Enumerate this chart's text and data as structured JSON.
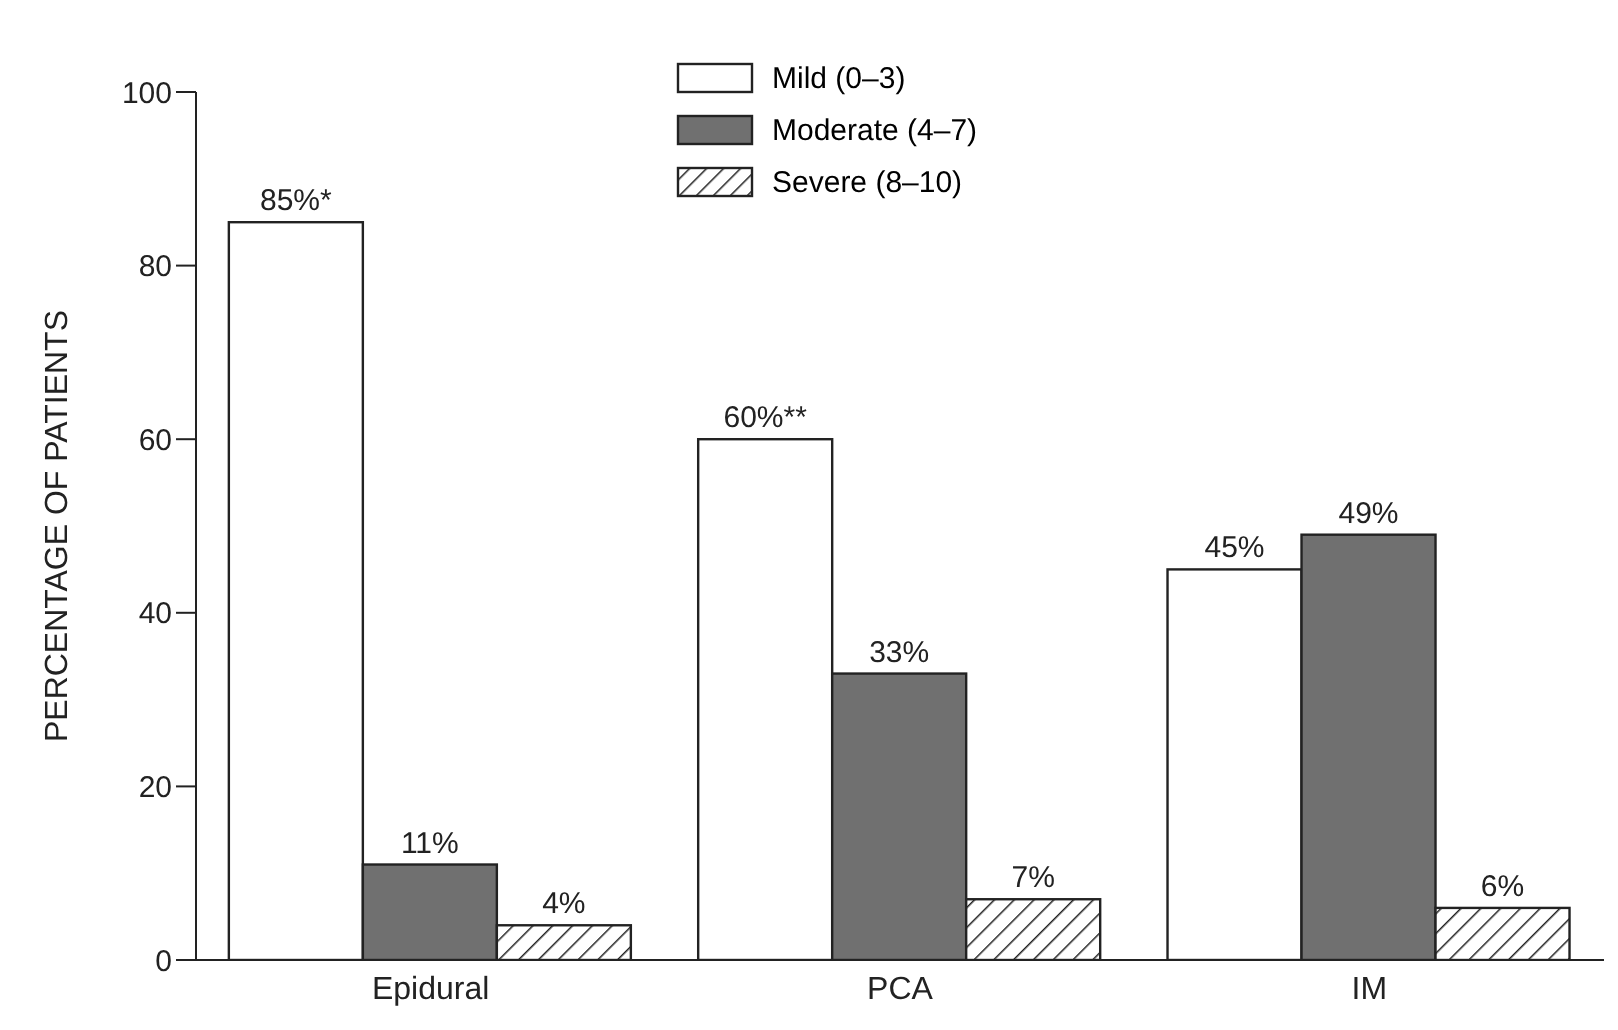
{
  "chart_data": {
    "type": "bar",
    "ylabel": "PERCENTAGE OF PATIENTS",
    "categories": [
      "Epidural",
      "PCA",
      "IM"
    ],
    "series": [
      {
        "name": "Mild (0–3)",
        "color": "#ffffff",
        "values": [
          85,
          60,
          45
        ],
        "value_labels": [
          "85%*",
          "60%**",
          "45%"
        ]
      },
      {
        "name": "Moderate (4–7)",
        "color": "#707070",
        "values": [
          11,
          33,
          49
        ],
        "value_labels": [
          "11%",
          "33%",
          "49%"
        ]
      },
      {
        "name": "Severe (8–10)",
        "color": "#222222",
        "values": [
          4,
          7,
          6
        ],
        "value_labels": [
          "4%",
          "7%",
          "6%"
        ]
      }
    ],
    "ylim": [
      0,
      100
    ],
    "yticks": [
      0,
      20,
      40,
      60,
      80,
      100
    ],
    "grid": false,
    "legend": "top"
  }
}
